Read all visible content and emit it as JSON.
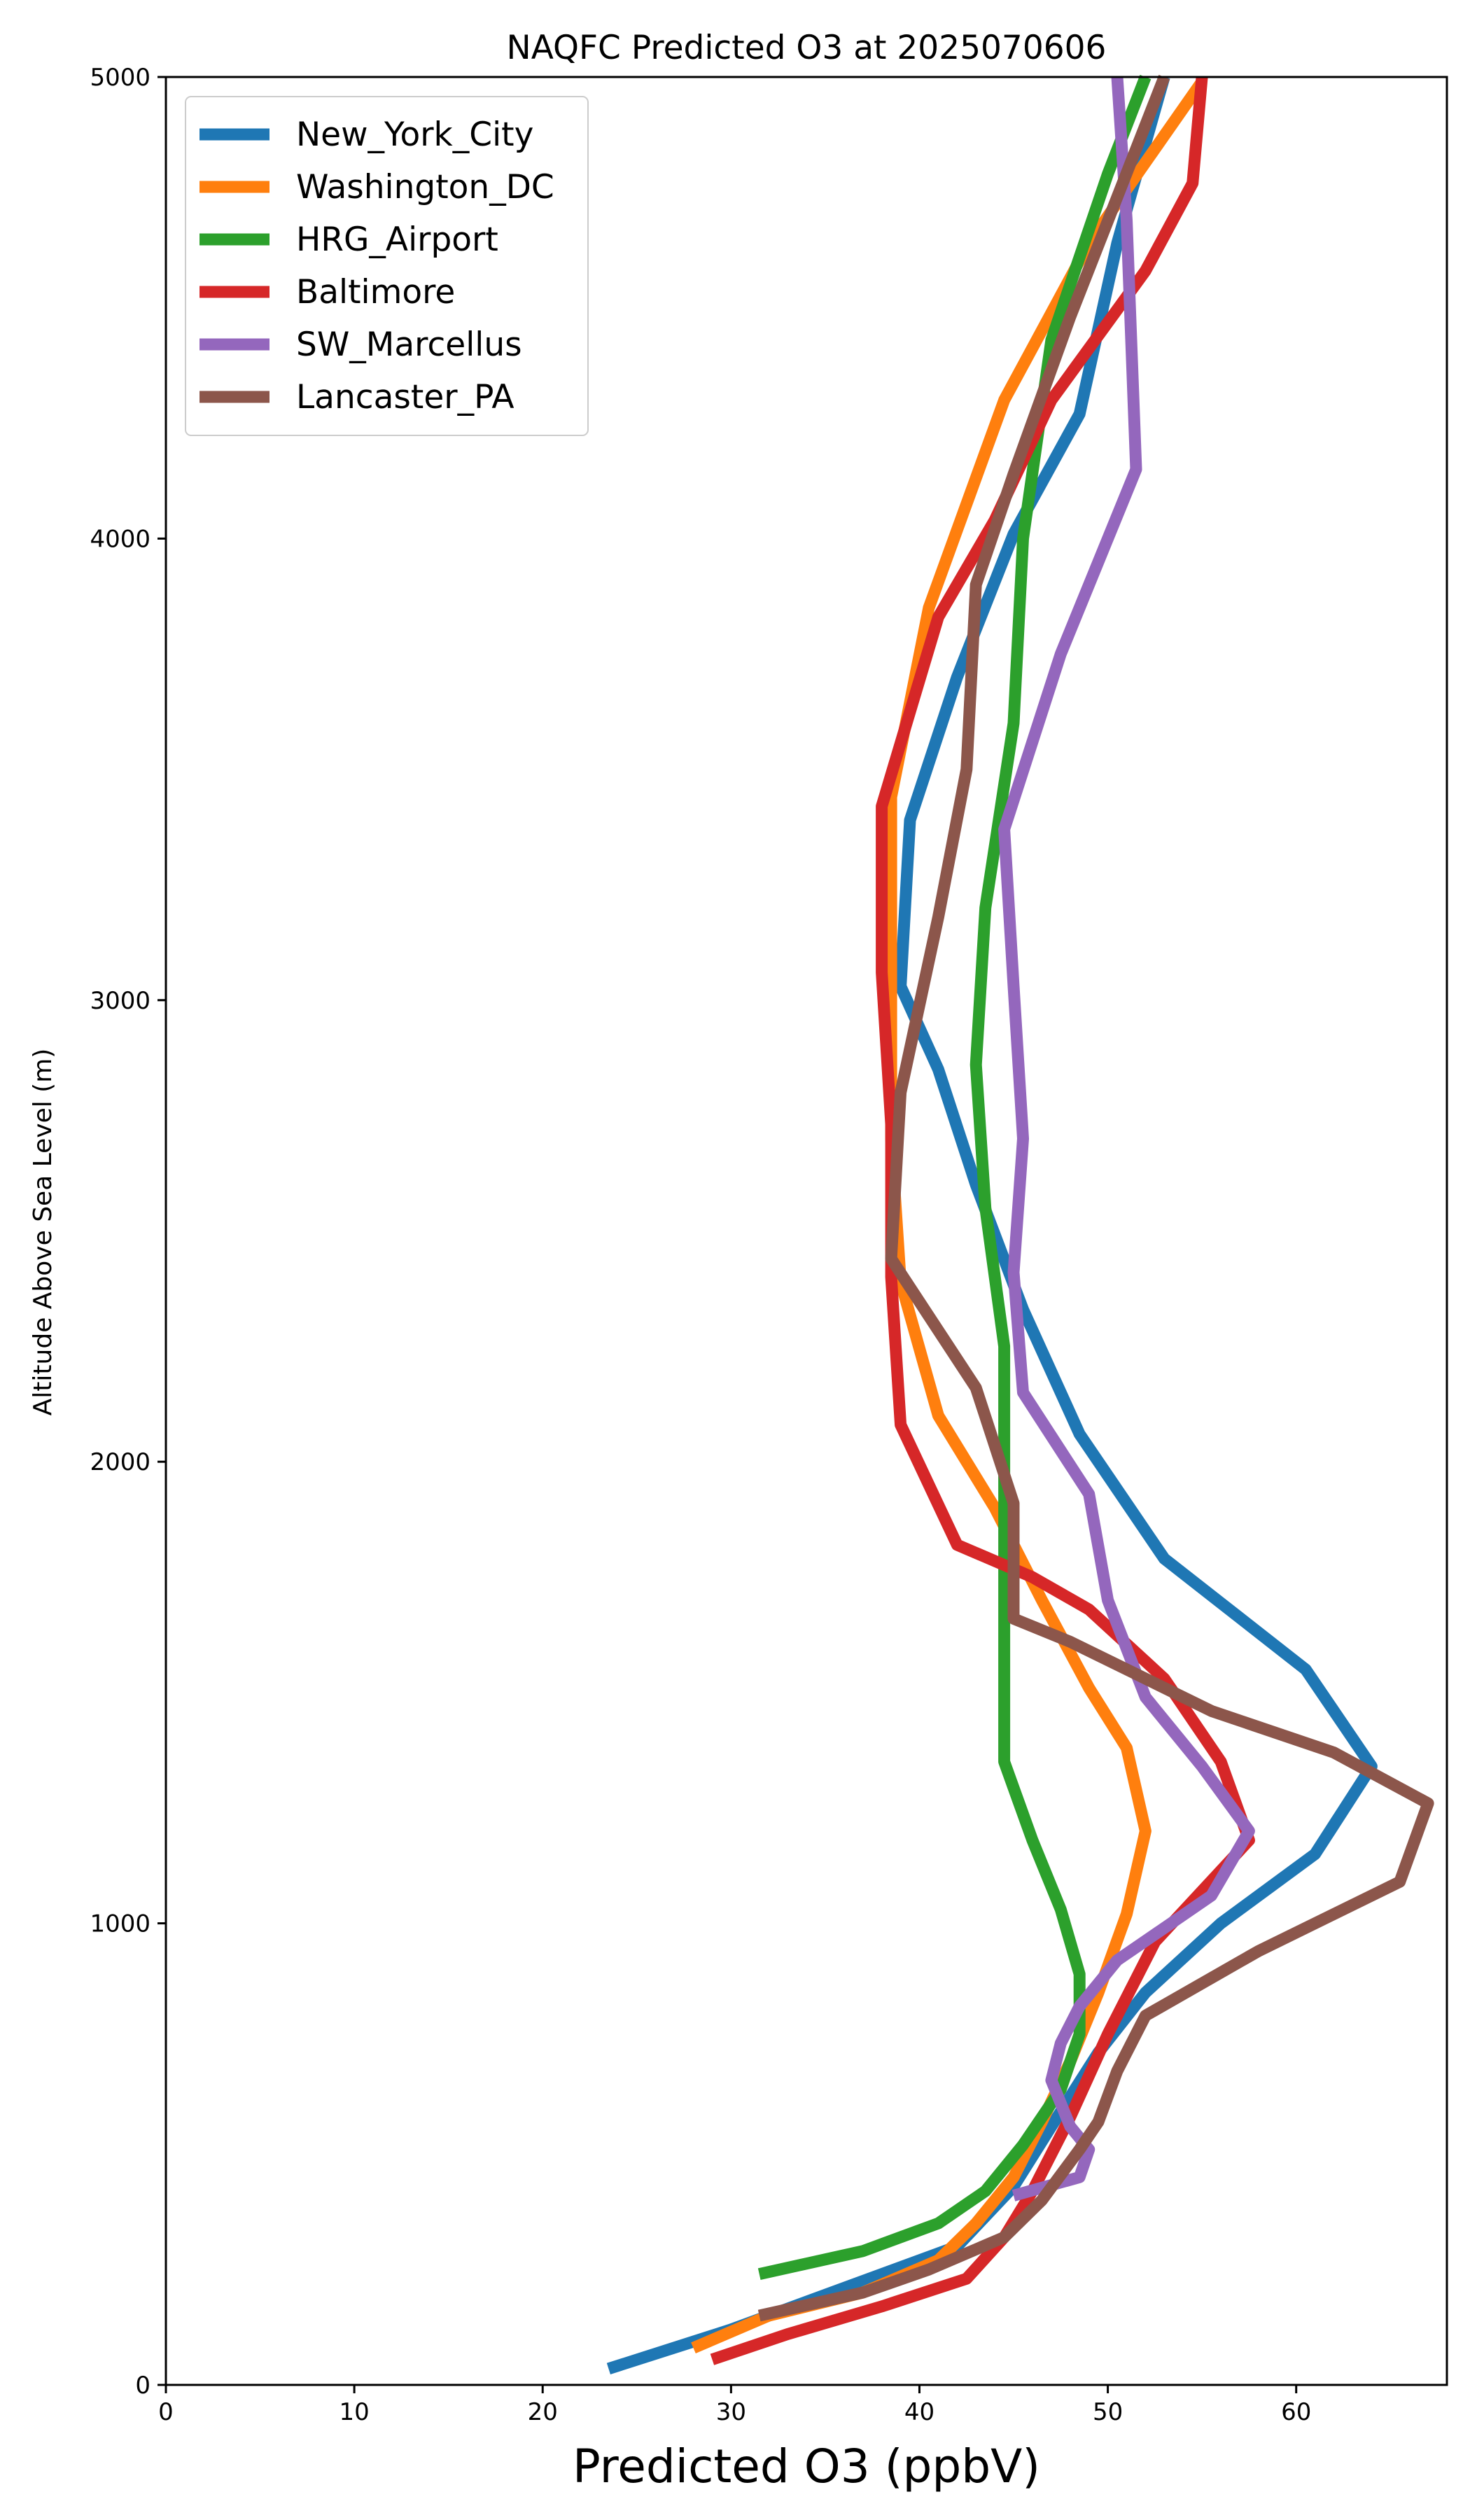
{
  "chart_data": {
    "type": "line",
    "title": "NAQFC Predicted O3 at 2025070606",
    "xlabel": "Predicted O3 (ppbV)",
    "ylabel": "Altitude Above Sea Level (m)",
    "xlim": [
      0,
      68
    ],
    "ylim": [
      0,
      5000
    ],
    "xticks": [
      0,
      10,
      20,
      30,
      40,
      50,
      60
    ],
    "yticks": [
      0,
      1000,
      2000,
      3000,
      4000,
      5000
    ],
    "grid": false,
    "legend_position": "upper-left",
    "series": [
      {
        "name": "New_York_City",
        "color": "#1f77b4",
        "points": [
          [
            23.5,
            35
          ],
          [
            30,
            120
          ],
          [
            36,
            210
          ],
          [
            42,
            300
          ],
          [
            45,
            430
          ],
          [
            47,
            560
          ],
          [
            49.5,
            720
          ],
          [
            52,
            850
          ],
          [
            56,
            1000
          ],
          [
            61,
            1150
          ],
          [
            64,
            1340
          ],
          [
            60.5,
            1550
          ],
          [
            53,
            1790
          ],
          [
            48.5,
            2060
          ],
          [
            45.5,
            2330
          ],
          [
            43,
            2600
          ],
          [
            41,
            2850
          ],
          [
            39,
            3030
          ],
          [
            39.5,
            3390
          ],
          [
            42,
            3700
          ],
          [
            45,
            4010
          ],
          [
            48.5,
            4270
          ],
          [
            50.5,
            4640
          ],
          [
            53,
            5000
          ]
        ]
      },
      {
        "name": "Washington_DC",
        "color": "#ff7f0e",
        "points": [
          [
            28,
            80
          ],
          [
            32,
            150
          ],
          [
            37,
            200
          ],
          [
            41,
            270
          ],
          [
            43,
            350
          ],
          [
            45,
            450
          ],
          [
            46.5,
            570
          ],
          [
            48,
            700
          ],
          [
            49.5,
            850
          ],
          [
            51,
            1020
          ],
          [
            52,
            1200
          ],
          [
            51,
            1380
          ],
          [
            49,
            1510
          ],
          [
            46.5,
            1700
          ],
          [
            44,
            1900
          ],
          [
            41,
            2100
          ],
          [
            39,
            2390
          ],
          [
            38.5,
            2700
          ],
          [
            38.5,
            3050
          ],
          [
            38.5,
            3440
          ],
          [
            40.5,
            3850
          ],
          [
            44.5,
            4300
          ],
          [
            49,
            4640
          ],
          [
            55,
            4990
          ]
        ]
      },
      {
        "name": "HRG_Airport",
        "color": "#2ca02c",
        "points": [
          [
            31.5,
            240
          ],
          [
            37,
            290
          ],
          [
            41,
            350
          ],
          [
            43.5,
            420
          ],
          [
            45.5,
            520
          ],
          [
            47.5,
            640
          ],
          [
            48.5,
            760
          ],
          [
            48.5,
            890
          ],
          [
            47.5,
            1030
          ],
          [
            46,
            1180
          ],
          [
            44.5,
            1350
          ],
          [
            44.5,
            1700
          ],
          [
            44.5,
            2000
          ],
          [
            44.5,
            2250
          ],
          [
            43.5,
            2550
          ],
          [
            43,
            2860
          ],
          [
            43.5,
            3200
          ],
          [
            45,
            3600
          ],
          [
            45.5,
            4000
          ],
          [
            47,
            4430
          ],
          [
            50,
            4790
          ],
          [
            52,
            5000
          ]
        ]
      },
      {
        "name": "Baltimore",
        "color": "#d62728",
        "points": [
          [
            29,
            55
          ],
          [
            33,
            110
          ],
          [
            38,
            170
          ],
          [
            42.5,
            230
          ],
          [
            44.5,
            320
          ],
          [
            46,
            420
          ],
          [
            48,
            580
          ],
          [
            50,
            760
          ],
          [
            52.5,
            960
          ],
          [
            57.5,
            1180
          ],
          [
            56,
            1350
          ],
          [
            53,
            1530
          ],
          [
            49,
            1680
          ],
          [
            46,
            1750
          ],
          [
            42,
            1820
          ],
          [
            39,
            2080
          ],
          [
            38.5,
            2400
          ],
          [
            38.5,
            2730
          ],
          [
            38,
            3060
          ],
          [
            38,
            3420
          ],
          [
            41,
            3830
          ],
          [
            44,
            4040
          ],
          [
            47,
            4300
          ],
          [
            52,
            4580
          ],
          [
            54.5,
            4770
          ],
          [
            55,
            5000
          ]
        ]
      },
      {
        "name": "SW_Marcellus",
        "color": "#9467bd",
        "points": [
          [
            45,
            410
          ],
          [
            48.5,
            450
          ],
          [
            49,
            510
          ],
          [
            48,
            560
          ],
          [
            47,
            660
          ],
          [
            47.5,
            740
          ],
          [
            48.5,
            820
          ],
          [
            50.5,
            920
          ],
          [
            55.5,
            1060
          ],
          [
            57.5,
            1200
          ],
          [
            55,
            1340
          ],
          [
            52,
            1490
          ],
          [
            50,
            1700
          ],
          [
            49,
            1930
          ],
          [
            45.5,
            2150
          ],
          [
            45,
            2410
          ],
          [
            45.5,
            2700
          ],
          [
            45,
            3030
          ],
          [
            44.5,
            3370
          ],
          [
            47.5,
            3750
          ],
          [
            51.5,
            4150
          ],
          [
            51,
            4690
          ],
          [
            50.5,
            5000
          ]
        ]
      },
      {
        "name": "Lancaster_PA",
        "color": "#8c564b",
        "points": [
          [
            31.5,
            150
          ],
          [
            37,
            200
          ],
          [
            40.5,
            250
          ],
          [
            44.5,
            320
          ],
          [
            46.5,
            400
          ],
          [
            48.5,
            510
          ],
          [
            49.5,
            570
          ],
          [
            50.5,
            680
          ],
          [
            52,
            800
          ],
          [
            58,
            940
          ],
          [
            65.5,
            1090
          ],
          [
            67,
            1260
          ],
          [
            62,
            1370
          ],
          [
            55.5,
            1460
          ],
          [
            51,
            1550
          ],
          [
            48,
            1610
          ],
          [
            45,
            1660
          ],
          [
            45,
            1910
          ],
          [
            43,
            2160
          ],
          [
            38.5,
            2440
          ],
          [
            39,
            2800
          ],
          [
            41,
            3180
          ],
          [
            42.5,
            3500
          ],
          [
            43,
            3900
          ],
          [
            45,
            4140
          ],
          [
            48,
            4480
          ],
          [
            53,
            5000
          ]
        ]
      }
    ]
  }
}
